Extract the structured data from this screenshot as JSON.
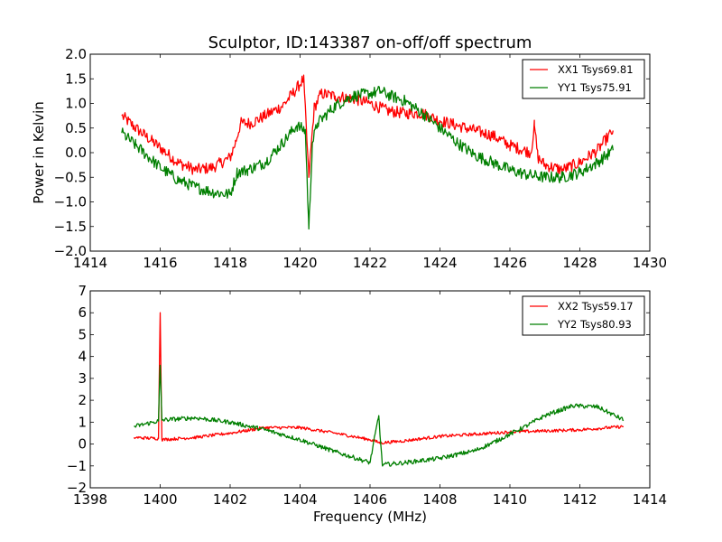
{
  "chart_data": [
    {
      "type": "line",
      "title": "Sculptor, ID:143387 on-off/off spectrum",
      "xlabel": "",
      "ylabel": "Power in Kelvin",
      "xlim": [
        1414,
        1430
      ],
      "ylim": [
        -2.0,
        2.0
      ],
      "xticks": [
        1414,
        1416,
        1418,
        1420,
        1422,
        1424,
        1426,
        1428,
        1430
      ],
      "xtick_labels": [
        "1414",
        "1416",
        "1418",
        "1420",
        "1422",
        "1424",
        "1426",
        "1428",
        "1430"
      ],
      "yticks": [
        -2.0,
        -1.5,
        -1.0,
        -0.5,
        0.0,
        0.5,
        1.0,
        1.5,
        2.0
      ],
      "ytick_labels": [
        "−2.0",
        "−1.5",
        "−1.0",
        "−0.5",
        "0.0",
        "0.5",
        "1.0",
        "1.5",
        "2.0"
      ],
      "grid": false,
      "legend_position": "top-right",
      "series": [
        {
          "name": "XX1 Tsys69.81",
          "color": "#ff0000",
          "x": [
            1414.9,
            1415.3,
            1416.0,
            1416.5,
            1417.0,
            1417.5,
            1418.0,
            1418.15,
            1418.3,
            1418.6,
            1419.0,
            1419.5,
            1419.9,
            1420.1,
            1420.25,
            1420.4,
            1420.6,
            1421.0,
            1421.5,
            1422.0,
            1422.5,
            1423.0,
            1423.5,
            1424.0,
            1424.5,
            1425.0,
            1425.5,
            1426.0,
            1426.6,
            1426.7,
            1426.8,
            1427.0,
            1427.5,
            1428.0,
            1428.5,
            1428.95
          ],
          "y": [
            0.75,
            0.5,
            0.1,
            -0.2,
            -0.35,
            -0.3,
            -0.1,
            0.2,
            0.6,
            0.6,
            0.75,
            0.95,
            1.3,
            1.5,
            -0.5,
            0.9,
            1.2,
            1.15,
            1.1,
            1.0,
            0.85,
            0.8,
            0.8,
            0.65,
            0.55,
            0.45,
            0.35,
            0.15,
            0.0,
            0.55,
            -0.1,
            -0.25,
            -0.35,
            -0.2,
            0.05,
            0.45
          ],
          "noise": 0.12
        },
        {
          "name": "YY1 Tsys75.91",
          "color": "#007f00",
          "x": [
            1414.9,
            1415.3,
            1416.0,
            1416.5,
            1417.0,
            1417.5,
            1418.0,
            1418.2,
            1418.5,
            1419.0,
            1419.5,
            1419.9,
            1420.15,
            1420.25,
            1420.35,
            1420.5,
            1421.0,
            1421.5,
            1422.0,
            1422.3,
            1422.6,
            1423.0,
            1423.5,
            1424.0,
            1424.5,
            1425.0,
            1425.5,
            1426.0,
            1426.5,
            1427.0,
            1427.5,
            1428.0,
            1428.5,
            1428.95
          ],
          "y": [
            0.4,
            0.15,
            -0.3,
            -0.55,
            -0.7,
            -0.8,
            -0.85,
            -0.4,
            -0.35,
            -0.2,
            0.2,
            0.55,
            0.45,
            -1.55,
            0.2,
            0.6,
            0.95,
            1.15,
            1.2,
            1.25,
            1.15,
            1.05,
            0.8,
            0.5,
            0.2,
            -0.05,
            -0.2,
            -0.35,
            -0.45,
            -0.5,
            -0.5,
            -0.4,
            -0.2,
            0.05
          ],
          "noise": 0.12
        }
      ]
    },
    {
      "type": "line",
      "title": "",
      "xlabel": "Frequency (MHz)",
      "ylabel": "",
      "xlim": [
        1398,
        1414
      ],
      "ylim": [
        -2,
        7
      ],
      "xticks": [
        1398,
        1400,
        1402,
        1404,
        1406,
        1408,
        1410,
        1412,
        1414
      ],
      "xtick_labels": [
        "1398",
        "1400",
        "1402",
        "1404",
        "1406",
        "1408",
        "1410",
        "1412",
        "1414"
      ],
      "yticks": [
        -2,
        -1,
        0,
        1,
        2,
        3,
        4,
        5,
        6,
        7
      ],
      "ytick_labels": [
        "−2",
        "−1",
        "0",
        "1",
        "2",
        "3",
        "4",
        "5",
        "6",
        "7"
      ],
      "grid": false,
      "legend_position": "top-right",
      "series": [
        {
          "name": "XX2 Tsys59.17",
          "color": "#ff0000",
          "x": [
            1399.25,
            1399.95,
            1400.0,
            1400.05,
            1401.0,
            1402.0,
            1403.0,
            1404.0,
            1405.0,
            1406.0,
            1406.3,
            1407.0,
            1408.0,
            1409.0,
            1410.0,
            1411.0,
            1412.0,
            1413.25
          ],
          "y": [
            0.3,
            0.25,
            6.0,
            0.2,
            0.3,
            0.5,
            0.75,
            0.75,
            0.5,
            0.2,
            0.05,
            0.15,
            0.35,
            0.45,
            0.55,
            0.6,
            0.65,
            0.8
          ],
          "noise": 0.07
        },
        {
          "name": "YY2 Tsys80.93",
          "color": "#007f00",
          "x": [
            1399.25,
            1399.95,
            1400.0,
            1400.05,
            1401.0,
            1402.0,
            1403.0,
            1404.0,
            1405.0,
            1406.0,
            1406.25,
            1406.35,
            1407.0,
            1408.0,
            1409.0,
            1409.5,
            1410.0,
            1410.5,
            1411.0,
            1411.8,
            1412.5,
            1413.25
          ],
          "y": [
            0.8,
            1.05,
            3.6,
            1.1,
            1.2,
            1.0,
            0.65,
            0.2,
            -0.35,
            -0.85,
            1.3,
            -0.95,
            -0.85,
            -0.65,
            -0.3,
            0.05,
            0.45,
            0.85,
            1.3,
            1.75,
            1.7,
            1.1
          ],
          "noise": 0.1
        }
      ]
    }
  ]
}
